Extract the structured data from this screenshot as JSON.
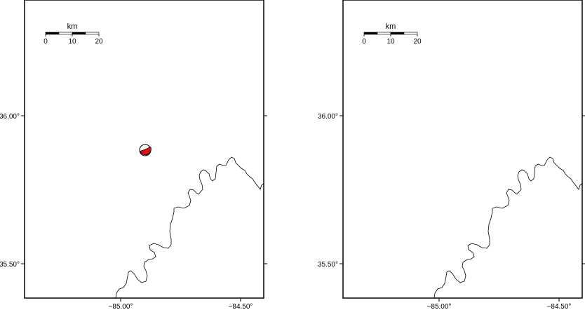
{
  "maps": [
    {
      "lat_labels": [
        "36.00°",
        "35.50°"
      ],
      "lon_labels": [
        "−85.00°",
        "−84.50°"
      ],
      "scale_bar": {
        "unit": "km",
        "ticks": [
          "0",
          "10",
          "20"
        ]
      },
      "has_focal_mechanism": true
    },
    {
      "lat_labels": [
        "36.00°",
        "35.50°"
      ],
      "lon_labels": [
        "−85.00°",
        "−84.50°"
      ],
      "scale_bar": {
        "unit": "km",
        "ticks": [
          "0",
          "10",
          "20"
        ]
      },
      "has_focal_mechanism": false
    }
  ],
  "colors": {
    "frame": "#000000",
    "river": "#000000",
    "beachball_fill": "#e0101a",
    "scale_fill": "#000000",
    "scale_empty": "#ffffff"
  }
}
